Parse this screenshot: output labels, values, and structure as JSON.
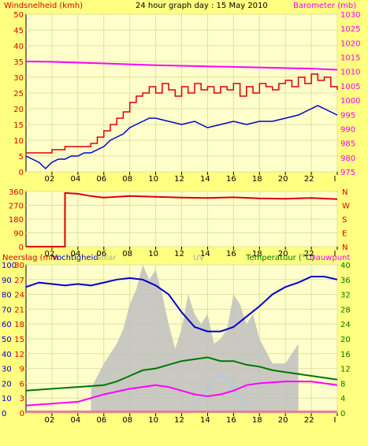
{
  "colors": {
    "background": "#ffff80",
    "plot_bg": "#ffffcc",
    "grid": "#e0e0a0",
    "wind_gust": "#dd0000",
    "wind_avg": "#0000cc",
    "barometer": "#ff00ff",
    "wind_dir": "#dd0000",
    "humidity": "#0000cc",
    "temperature": "#007700",
    "dewpoint": "#ff00ff",
    "rain": "#c0c0c0",
    "uv": "#99ccff",
    "left_axis": "#dd0000",
    "right_axis_top": "#ff00ff",
    "right_axis_mid": "#0000cc",
    "right_axis_bottom": "#007700"
  },
  "labels": {
    "title": "24 hour graph day : 15 May 2010",
    "wind_label": "Windsnelheid (kmh)",
    "baro_label": "Barometer (mb)",
    "rain_label": "Neerslag (mm",
    "hum_label": "Vochtigheid",
    "solar_label": "Solar",
    "uv_label": "UV",
    "temp_label": "Temperatuur (°C)",
    "dew_label": "Dauwpunt"
  },
  "chart_data": [
    {
      "type": "line",
      "x_ticks": [
        "02",
        "04",
        "06",
        "08",
        "10",
        "12",
        "14",
        "16",
        "18",
        "20",
        "22",
        "I"
      ],
      "y_left": {
        "ticks": [
          0,
          5,
          10,
          15,
          20,
          25,
          30,
          35,
          40,
          45,
          50
        ],
        "ylim": [
          0,
          50
        ]
      },
      "y_right": {
        "ticks": [
          975,
          980,
          985,
          990,
          995,
          1000,
          1005,
          1010,
          1015,
          1020,
          1025,
          1030
        ],
        "ylim": [
          975,
          1030
        ]
      },
      "series": [
        {
          "key": "wind_gust",
          "x": [
            0,
            1,
            2,
            3,
            4,
            5,
            5.5,
            6,
            6.5,
            7,
            7.5,
            8,
            8.5,
            9,
            9.5,
            10,
            10.5,
            11,
            11.5,
            12,
            12.5,
            13,
            13.5,
            14,
            14.5,
            15,
            15.5,
            16,
            16.5,
            17,
            17.5,
            18,
            18.5,
            19,
            19.5,
            20,
            20.5,
            21,
            21.5,
            22,
            22.5,
            23,
            23.5,
            24
          ],
          "values": [
            6,
            6,
            7,
            8,
            8,
            9,
            11,
            13,
            15,
            17,
            19,
            22,
            24,
            25,
            27,
            25,
            28,
            26,
            24,
            27,
            25,
            28,
            26,
            27,
            25,
            27,
            26,
            28,
            24,
            27,
            25,
            28,
            27,
            26,
            28,
            29,
            27,
            30,
            28,
            31,
            29,
            30,
            27,
            26
          ]
        },
        {
          "key": "wind_avg",
          "x": [
            0,
            0.5,
            1,
            1.5,
            2,
            2.5,
            3,
            3.5,
            4,
            4.5,
            5,
            5.5,
            6,
            6.5,
            7,
            7.5,
            8,
            8.5,
            9,
            9.5,
            10,
            11,
            12,
            13,
            14,
            15,
            16,
            17,
            18,
            19,
            20,
            21,
            22,
            22.5,
            23,
            23.5,
            24
          ],
          "values": [
            5,
            4,
            3,
            1,
            3,
            4,
            4,
            5,
            5,
            6,
            6,
            7,
            8,
            10,
            11,
            12,
            14,
            15,
            16,
            17,
            17,
            16,
            15,
            16,
            14,
            15,
            16,
            15,
            16,
            16,
            17,
            18,
            20,
            21,
            20,
            19,
            18
          ]
        },
        {
          "key": "barometer",
          "x": [
            0,
            2,
            4,
            6,
            8,
            10,
            12,
            14,
            16,
            18,
            20,
            22,
            24
          ],
          "values": [
            1013.5,
            1013.4,
            1013.1,
            1012.8,
            1012.5,
            1012.2,
            1012,
            1011.8,
            1011.6,
            1011.4,
            1011.2,
            1011,
            1010.6
          ]
        }
      ]
    },
    {
      "type": "line",
      "x_ticks": [
        "02",
        "04",
        "06",
        "08",
        "10",
        "12",
        "14",
        "16",
        "18",
        "20",
        "22",
        "I"
      ],
      "y_left": {
        "ticks": [
          0,
          90,
          180,
          270,
          360
        ],
        "ylim": [
          0,
          360
        ]
      },
      "y_right_letters": [
        "N",
        "W",
        "S",
        "E",
        "N"
      ],
      "series": [
        {
          "key": "wind_dir",
          "x": [
            0,
            1,
            2,
            3,
            3.01,
            4,
            5,
            6,
            8,
            10,
            12,
            14,
            16,
            18,
            20,
            22,
            24
          ],
          "values": [
            0,
            0,
            0,
            0,
            350,
            345,
            330,
            320,
            330,
            325,
            320,
            318,
            322,
            315,
            312,
            318,
            310
          ]
        }
      ]
    },
    {
      "type": "area",
      "x_ticks": [
        "02",
        "04",
        "06",
        "08",
        "10",
        "12",
        "14",
        "16",
        "18",
        "20",
        "22",
        "I"
      ],
      "y_left_rain": {
        "ticks": [
          0,
          3,
          6,
          9,
          12,
          15,
          18,
          21,
          24,
          27,
          30
        ],
        "ylim": [
          0,
          30
        ]
      },
      "y_left_hum": {
        "ticks": [
          0,
          10,
          20,
          30,
          40,
          50,
          60,
          70,
          80,
          90,
          100
        ],
        "ylim": [
          0,
          100
        ]
      },
      "y_right_temp": {
        "ticks": [
          0,
          4,
          8,
          12,
          16,
          20,
          24,
          28,
          32,
          36,
          40
        ],
        "ylim": [
          0,
          40
        ]
      },
      "series": [
        {
          "key": "humidity",
          "x": [
            0,
            1,
            2,
            3,
            4,
            5,
            6,
            7,
            8,
            9,
            10,
            11,
            12,
            13,
            14,
            15,
            16,
            17,
            18,
            19,
            20,
            21,
            22,
            23,
            24
          ],
          "values": [
            85,
            88,
            87,
            86,
            87,
            86,
            88,
            90,
            91,
            90,
            86,
            80,
            68,
            58,
            55,
            55,
            58,
            65,
            72,
            80,
            85,
            88,
            92,
            92,
            90
          ]
        },
        {
          "key": "temperature",
          "x": [
            0,
            2,
            4,
            6,
            7,
            8,
            9,
            10,
            11,
            12,
            13,
            14,
            15,
            16,
            17,
            18,
            19,
            20,
            21,
            22,
            23,
            24
          ],
          "values": [
            6,
            6.5,
            7,
            7.5,
            8.5,
            10,
            11.5,
            12,
            13,
            14,
            14.5,
            15,
            14,
            14,
            13,
            12.5,
            11.5,
            11,
            10.5,
            10,
            9.5,
            9
          ]
        },
        {
          "key": "dewpoint",
          "x": [
            0,
            2,
            4,
            6,
            8,
            10,
            11,
            12,
            13,
            14,
            15,
            16,
            17,
            18,
            20,
            22,
            24
          ],
          "values": [
            2,
            2.5,
            3,
            5,
            6.5,
            7.5,
            7,
            6,
            5,
            4.5,
            5,
            6,
            7.5,
            8,
            8.5,
            8.5,
            7.5
          ]
        },
        {
          "key": "rain",
          "x": [
            0,
            5,
            5.01,
            6,
            7,
            7.5,
            8,
            8.5,
            9,
            9.5,
            10,
            10.5,
            11,
            11.5,
            12,
            12.5,
            13,
            13.5,
            14,
            14.5,
            15,
            15.5,
            16,
            16.5,
            17,
            17.5,
            18,
            19,
            20,
            21,
            21.01,
            24
          ],
          "values": [
            0,
            0,
            5,
            10,
            14,
            17,
            22,
            25,
            30,
            27,
            29,
            24,
            18,
            13,
            17,
            24,
            20,
            18,
            20,
            14,
            15,
            17,
            24,
            22,
            18,
            20,
            15,
            10,
            10,
            14,
            0,
            0
          ]
        },
        {
          "key": "uv",
          "x": [
            0,
            12.5,
            13,
            13.5,
            14,
            14.5,
            15,
            15.5,
            16,
            16.5,
            17,
            17.5,
            24
          ],
          "values": [
            0,
            0,
            2,
            4,
            6,
            9,
            10,
            9,
            6,
            4,
            2,
            0,
            0
          ]
        }
      ]
    }
  ]
}
